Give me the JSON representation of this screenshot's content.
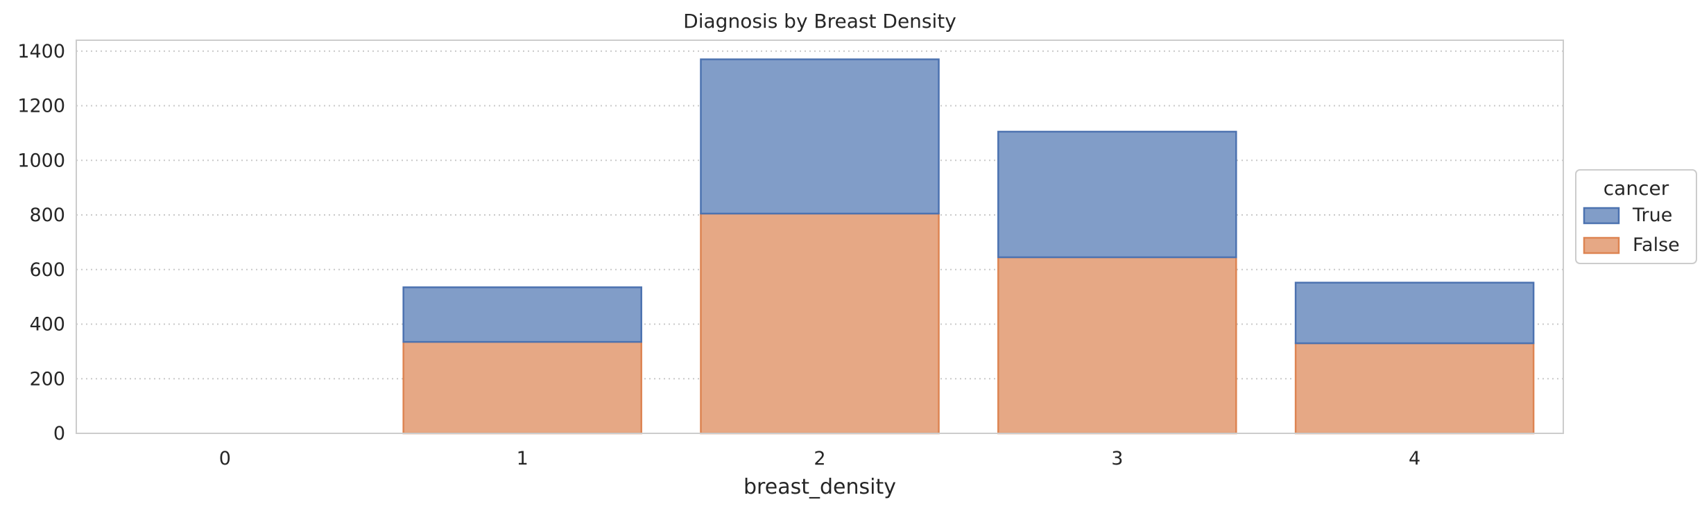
{
  "chart_data": {
    "type": "bar",
    "stacked": true,
    "title": "Diagnosis by Breast Density",
    "xlabel": "breast_density",
    "ylabel": "",
    "categories": [
      "0",
      "1",
      "2",
      "3",
      "4"
    ],
    "ylim": [
      0,
      1440
    ],
    "yticks": [
      0,
      200,
      400,
      600,
      800,
      1000,
      1200,
      1400
    ],
    "grid": "horizontal-dotted",
    "legend_position": "right",
    "legend_title": "cancer",
    "legend_entries": [
      "True",
      "False"
    ],
    "series": [
      {
        "name": "False",
        "values": [
          0,
          335,
          805,
          645,
          330
        ],
        "color": "#e6a885",
        "edge": "#dd8452"
      },
      {
        "name": "True",
        "values": [
          0,
          200,
          565,
          460,
          222
        ],
        "color": "#819dc8",
        "edge": "#4c72b0"
      }
    ]
  }
}
